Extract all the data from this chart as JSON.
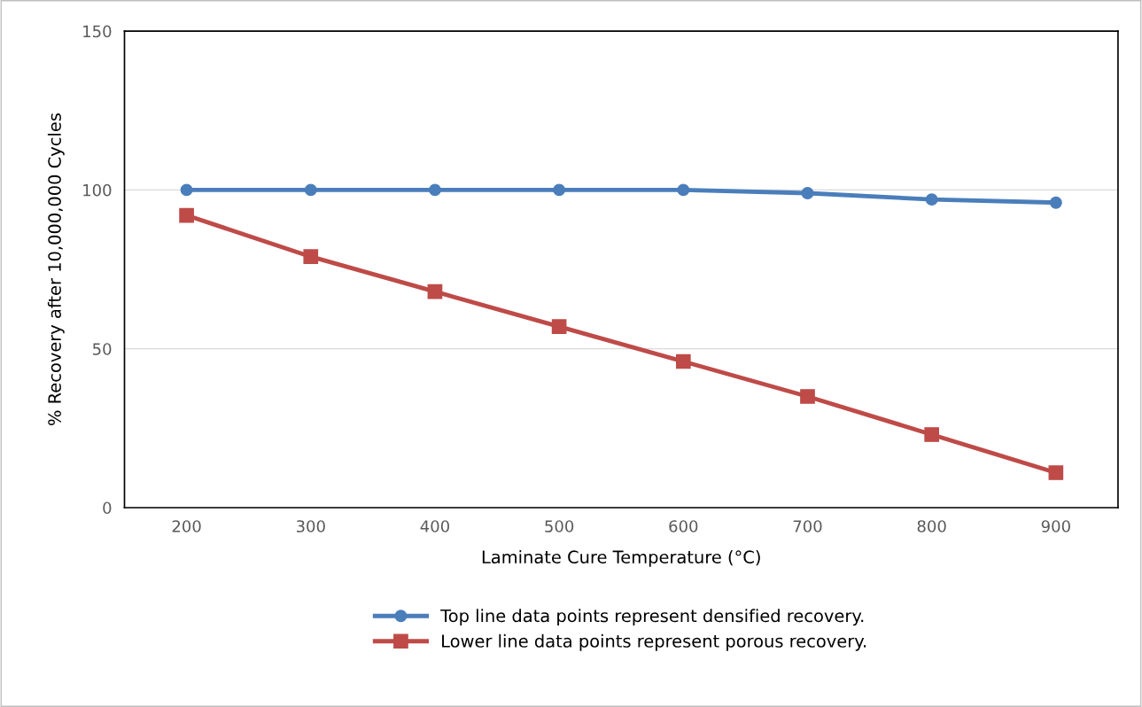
{
  "chart_data": {
    "type": "line",
    "xlabel": "Laminate Cure Temperature (°C)",
    "ylabel": "% Recovery after 10,000,000 Cycles",
    "categories": [
      "200",
      "300",
      "400",
      "500",
      "600",
      "700",
      "800",
      "900"
    ],
    "series": [
      {
        "name": "Top line data points represent densified recovery.",
        "color": "#4a7ebb",
        "marker": "circle",
        "values": [
          100,
          100,
          100,
          100,
          100,
          99,
          97,
          96
        ]
      },
      {
        "name": "Lower line data points represent porous recovery.",
        "color": "#be4b48",
        "marker": "square",
        "values": [
          92,
          79,
          68,
          57,
          46,
          35,
          23,
          11
        ]
      }
    ],
    "ylim": [
      0,
      150
    ],
    "yticks": [
      0,
      50,
      100,
      150
    ],
    "grid": "y",
    "legend": "bottom",
    "line_style": "solid"
  }
}
